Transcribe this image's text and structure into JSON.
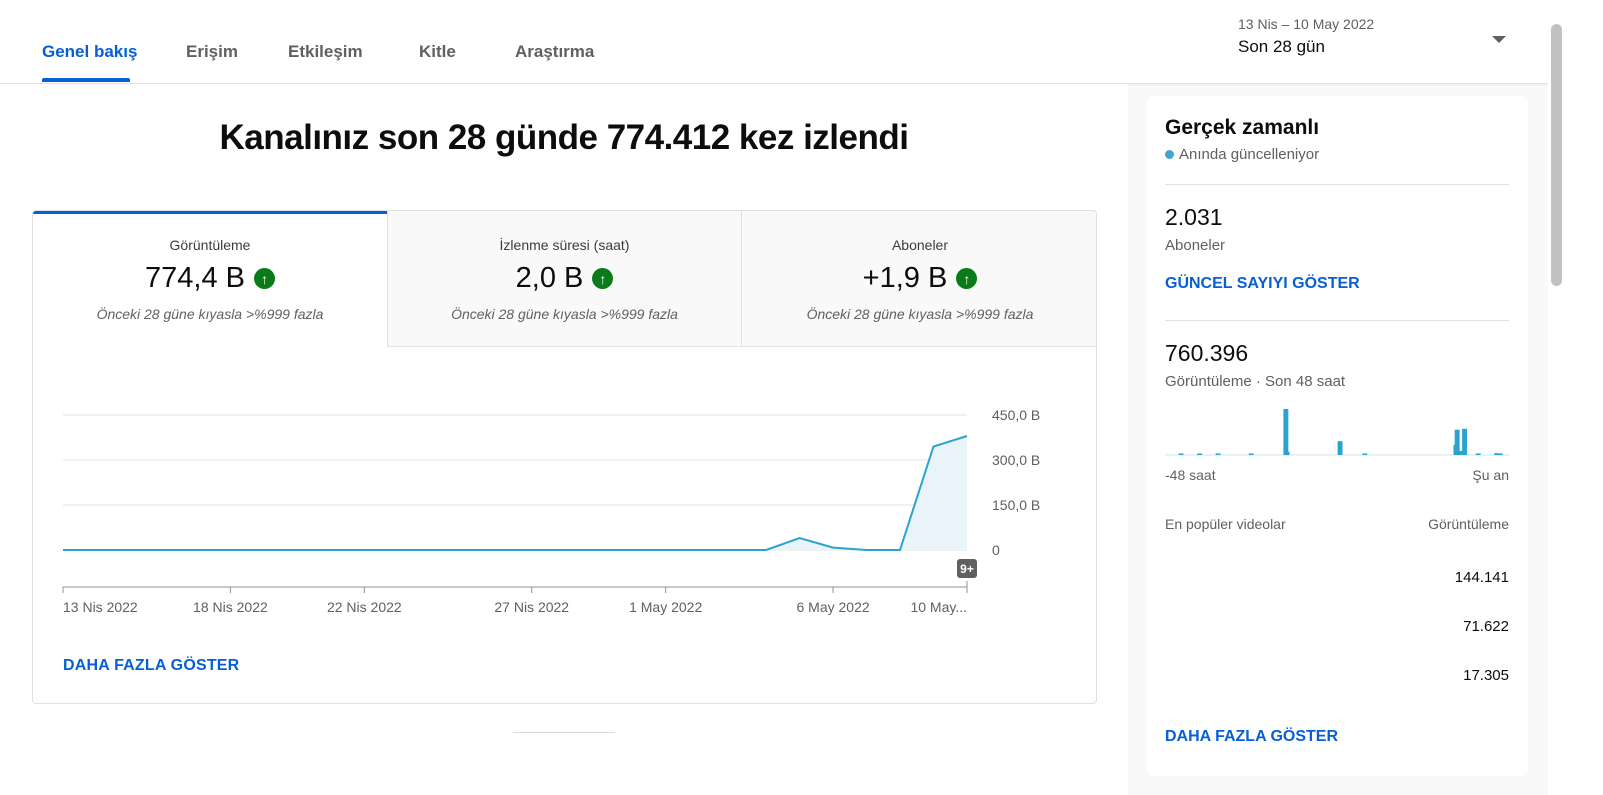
{
  "tabs": [
    {
      "label": "Genel bakış",
      "active": true
    },
    {
      "label": "Erişim",
      "active": false
    },
    {
      "label": "Etkileşim",
      "active": false
    },
    {
      "label": "Kitle",
      "active": false
    },
    {
      "label": "Araştırma",
      "active": false
    }
  ],
  "date_range": {
    "range": "13 Nis – 10 May 2022",
    "label": "Son 28 gün"
  },
  "headline": "Kanalınız son 28 günde 774.412 kez izlendi",
  "metrics": [
    {
      "label": "Görüntüleme",
      "value": "774,4 B",
      "compare": "Önceki 28 güne kıyasla >%999 fazla"
    },
    {
      "label": "İzlenme süresi (saat)",
      "value": "2,0 B",
      "compare": "Önceki 28 güne kıyasla >%999 fazla"
    },
    {
      "label": "Aboneler",
      "value": "+1,9 B",
      "compare": "Önceki 28 güne kıyasla >%999 fazla"
    }
  ],
  "chart_data": {
    "type": "area",
    "x_tick_labels": [
      "13 Nis 2022",
      "18 Nis 2022",
      "22 Nis 2022",
      "27 Nis 2022",
      "1 May 2022",
      "6 May 2022",
      "10 May..."
    ],
    "y_tick_labels": [
      "450,0 B",
      "300,0 B",
      "150,0 B",
      "0"
    ],
    "ylim": [
      0,
      450
    ],
    "y_unit": "B",
    "x": [
      "13 Nis",
      "14 Nis",
      "15 Nis",
      "16 Nis",
      "17 Nis",
      "18 Nis",
      "19 Nis",
      "20 Nis",
      "21 Nis",
      "22 Nis",
      "23 Nis",
      "24 Nis",
      "25 Nis",
      "26 Nis",
      "27 Nis",
      "28 Nis",
      "29 Nis",
      "30 Nis",
      "1 May",
      "2 May",
      "3 May",
      "4 May",
      "5 May",
      "6 May",
      "7 May",
      "8 May",
      "9 May",
      "10 May"
    ],
    "series": [
      {
        "values": [
          0,
          0,
          0,
          0,
          0,
          0,
          0,
          0,
          0,
          0,
          0,
          0,
          0,
          0,
          0,
          0,
          0,
          0,
          0,
          0,
          0,
          0,
          40,
          8,
          0,
          0,
          345,
          380
        ]
      }
    ],
    "badge": "9+",
    "color": "#2aa3cf",
    "fill": "#e8f4fa"
  },
  "main_more": "DAHA FAZLA GÖSTER",
  "realtime": {
    "title": "Gerçek zamanlı",
    "live": "Anında güncelleniyor",
    "subs_value": "2.031",
    "subs_label": "Aboneler",
    "subs_link": "GÜNCEL SAYIYI GÖSTER",
    "views_value": "760.396",
    "views_label": "Görüntüleme · Son 48 saat",
    "axis_left": "-48 saat",
    "axis_right": "Şu an",
    "bars": [
      0,
      0,
      0,
      0,
      0,
      0,
      0,
      0,
      0,
      0,
      0,
      1,
      0,
      0,
      0,
      0,
      0,
      0,
      0,
      0,
      0,
      0,
      0,
      0,
      0,
      0,
      1,
      0,
      0,
      0,
      0,
      0,
      0,
      0,
      0,
      0,
      0,
      0,
      0,
      0,
      0,
      1,
      0,
      0,
      0,
      0,
      0,
      0,
      0,
      0,
      0,
      0,
      0,
      0,
      0,
      0,
      0,
      0,
      0,
      0,
      0,
      0,
      0,
      0,
      0,
      0,
      0,
      0,
      1,
      0,
      0,
      0,
      0,
      0,
      0,
      0,
      0,
      0,
      0,
      0,
      0,
      0,
      0,
      0,
      0,
      0,
      0,
      0,
      0,
      0,
      0,
      0,
      0,
      0,
      0,
      0,
      100,
      7,
      0,
      0,
      0,
      0,
      0,
      0,
      0,
      0,
      0,
      0,
      0,
      0,
      0,
      0,
      0,
      0,
      0,
      0,
      0,
      0,
      0,
      0,
      0,
      0,
      0,
      0,
      0,
      0,
      0,
      0,
      0,
      0,
      0,
      0,
      0,
      0,
      0,
      0,
      0,
      0,
      0,
      0,
      30,
      0,
      0,
      0,
      0,
      0,
      0,
      0,
      0,
      0,
      0,
      0,
      0,
      0,
      0,
      0,
      0,
      0,
      0,
      0,
      3,
      0,
      0,
      0,
      0,
      0,
      0,
      0,
      0,
      0,
      0,
      0,
      0,
      0,
      0,
      0,
      0,
      0,
      0,
      0,
      0,
      0,
      0,
      0,
      0,
      0,
      0,
      0,
      0,
      0,
      0,
      0,
      0,
      0,
      0,
      0,
      0,
      0,
      0,
      0,
      0,
      0,
      0,
      0,
      0,
      0,
      0,
      0,
      0,
      0,
      0,
      0,
      0,
      0,
      0,
      0,
      0,
      0,
      0,
      0,
      0,
      0,
      0,
      0,
      0,
      0,
      0,
      0,
      0,
      0,
      0,
      0,
      0,
      0,
      22,
      55,
      0,
      9,
      6,
      0,
      0,
      57,
      0,
      0,
      0,
      0,
      0,
      0,
      0,
      0,
      0,
      0,
      2,
      0,
      0,
      0,
      0,
      0,
      0,
      0,
      0,
      0,
      0,
      0,
      0,
      0,
      0,
      4,
      0,
      0,
      3,
      0,
      0,
      0,
      0,
      0,
      0,
      0,
      0
    ],
    "list_header_left": "En popüler videolar",
    "list_header_right": "Görüntüleme",
    "list_values": [
      "144.141",
      "71.622",
      "17.305"
    ],
    "more": "DAHA FAZLA GÖSTER"
  }
}
